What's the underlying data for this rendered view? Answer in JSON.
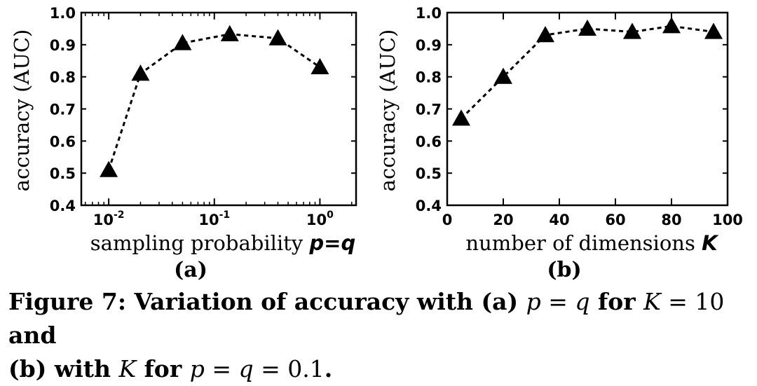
{
  "chart_data": [
    {
      "type": "line",
      "panel_label": "(a)",
      "x": [
        0.01,
        0.02,
        0.05,
        0.14,
        0.4,
        1.0
      ],
      "y": [
        0.51,
        0.81,
        0.905,
        0.933,
        0.92,
        0.83
      ],
      "xscale": "log",
      "xlim": [
        0.0055,
        2.2
      ],
      "ylim": [
        0.4,
        1.0
      ],
      "xticks": [
        "10^-2",
        "10^-1",
        "10^0"
      ],
      "yticks": [
        "0.4",
        "0.5",
        "0.6",
        "0.7",
        "0.8",
        "0.9",
        "1.0"
      ],
      "xlabel": "sampling probability",
      "xlabel_var": "p=q",
      "ylabel": "accuracy (AUC)",
      "marker": "triangle",
      "line_style": "dashed",
      "color": "#000000"
    },
    {
      "type": "line",
      "panel_label": "(b)",
      "x": [
        5,
        20,
        35,
        50,
        66,
        80,
        95
      ],
      "y": [
        0.67,
        0.8,
        0.93,
        0.95,
        0.94,
        0.958,
        0.94
      ],
      "xscale": "linear",
      "xlim": [
        0,
        100
      ],
      "ylim": [
        0.4,
        1.0
      ],
      "xticks": [
        "0",
        "20",
        "40",
        "60",
        "80",
        "100"
      ],
      "yticks": [
        "0.4",
        "0.5",
        "0.6",
        "0.7",
        "0.8",
        "0.9",
        "1.0"
      ],
      "xlabel": "number of dimensions",
      "xlabel_var": "K",
      "ylabel": "accuracy (AUC)",
      "marker": "triangle",
      "line_style": "dashed",
      "color": "#000000"
    }
  ],
  "caption": {
    "prefix": "Figure 7: Variation of accuracy with (a) ",
    "m1": "p",
    "eq1": " = ",
    "m2": "q",
    "t2": " for ",
    "m3": "K",
    "eq2": " = 10",
    "t3": " and",
    "t4": "(b) with ",
    "m4": "K",
    "t5": " for ",
    "m5": "p",
    "eq3": " = ",
    "m6": "q",
    "eq4": " = 0.1",
    "t6": "."
  }
}
